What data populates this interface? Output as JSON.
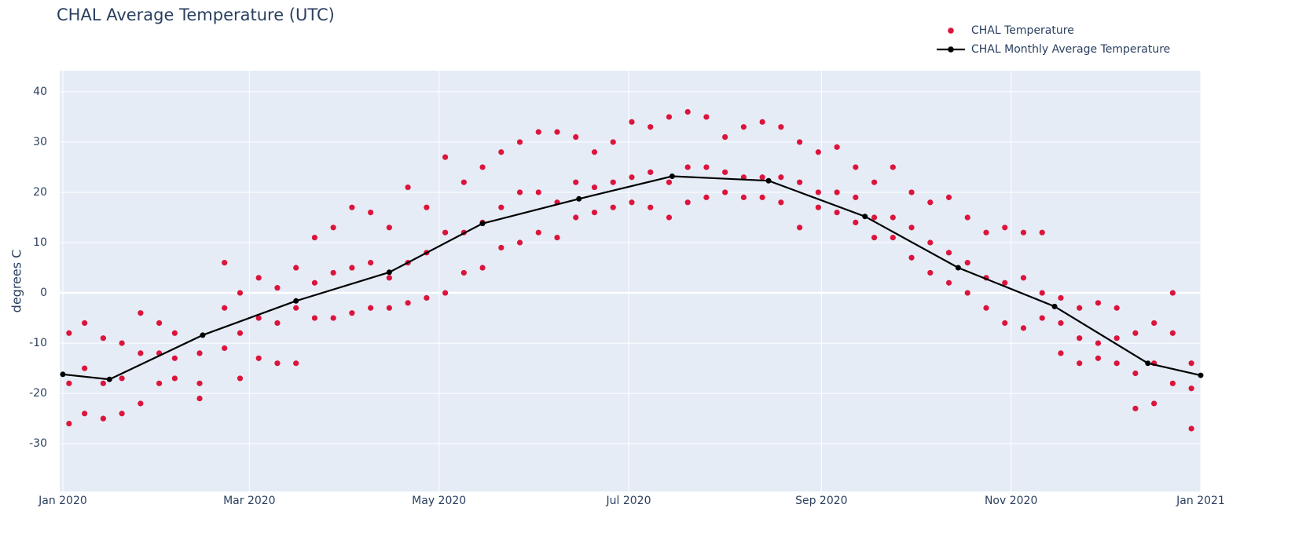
{
  "chart_data": {
    "type": "scatter",
    "title": "CHAL Average Temperature (UTC)",
    "y_label": "degrees C",
    "xlim": [
      "2019-12-31",
      "2021-01-01"
    ],
    "xticks": [
      {
        "value": "2020-01-01",
        "label": "Jan 2020"
      },
      {
        "value": "2020-03-01",
        "label": "Mar 2020"
      },
      {
        "value": "2020-05-01",
        "label": "May 2020"
      },
      {
        "value": "2020-07-01",
        "label": "Jul 2020"
      },
      {
        "value": "2020-09-01",
        "label": "Sep 2020"
      },
      {
        "value": "2020-11-01",
        "label": "Nov 2020"
      },
      {
        "value": "2021-01-01",
        "label": "Jan 2021"
      }
    ],
    "ylim": [
      -39.5,
      44.2
    ],
    "yticks": [
      -30,
      -20,
      -10,
      0,
      10,
      20,
      30,
      40
    ],
    "grid": true,
    "legend_position": "top-right",
    "series": [
      {
        "name": "CHAL Temperature",
        "color": "#dc143c",
        "mode": "markers",
        "x": [
          "2020-01-03",
          "2020-01-03",
          "2020-01-03",
          "2020-01-08",
          "2020-01-08",
          "2020-01-08",
          "2020-01-14",
          "2020-01-14",
          "2020-01-14",
          "2020-01-20",
          "2020-01-20",
          "2020-01-20",
          "2020-01-26",
          "2020-01-26",
          "2020-01-26",
          "2020-02-01",
          "2020-02-01",
          "2020-02-01",
          "2020-02-06",
          "2020-02-06",
          "2020-02-06",
          "2020-02-14",
          "2020-02-14",
          "2020-02-14",
          "2020-02-22",
          "2020-02-22",
          "2020-02-22",
          "2020-02-27",
          "2020-02-27",
          "2020-02-27",
          "2020-03-04",
          "2020-03-04",
          "2020-03-04",
          "2020-03-10",
          "2020-03-10",
          "2020-03-10",
          "2020-03-16",
          "2020-03-16",
          "2020-03-16",
          "2020-03-22",
          "2020-03-22",
          "2020-03-22",
          "2020-03-28",
          "2020-03-28",
          "2020-03-28",
          "2020-04-03",
          "2020-04-03",
          "2020-04-03",
          "2020-04-09",
          "2020-04-09",
          "2020-04-09",
          "2020-04-15",
          "2020-04-15",
          "2020-04-15",
          "2020-04-21",
          "2020-04-21",
          "2020-04-21",
          "2020-04-27",
          "2020-04-27",
          "2020-04-27",
          "2020-05-03",
          "2020-05-03",
          "2020-05-03",
          "2020-05-09",
          "2020-05-09",
          "2020-05-09",
          "2020-05-15",
          "2020-05-15",
          "2020-05-15",
          "2020-05-21",
          "2020-05-21",
          "2020-05-21",
          "2020-05-27",
          "2020-05-27",
          "2020-05-27",
          "2020-06-02",
          "2020-06-02",
          "2020-06-02",
          "2020-06-08",
          "2020-06-08",
          "2020-06-08",
          "2020-06-14",
          "2020-06-14",
          "2020-06-14",
          "2020-06-20",
          "2020-06-20",
          "2020-06-20",
          "2020-06-26",
          "2020-06-26",
          "2020-06-26",
          "2020-07-02",
          "2020-07-02",
          "2020-07-02",
          "2020-07-08",
          "2020-07-08",
          "2020-07-08",
          "2020-07-14",
          "2020-07-14",
          "2020-07-14",
          "2020-07-20",
          "2020-07-20",
          "2020-07-20",
          "2020-07-26",
          "2020-07-26",
          "2020-07-26",
          "2020-08-01",
          "2020-08-01",
          "2020-08-01",
          "2020-08-07",
          "2020-08-07",
          "2020-08-07",
          "2020-08-13",
          "2020-08-13",
          "2020-08-13",
          "2020-08-19",
          "2020-08-19",
          "2020-08-19",
          "2020-08-25",
          "2020-08-25",
          "2020-08-25",
          "2020-08-31",
          "2020-08-31",
          "2020-08-31",
          "2020-09-06",
          "2020-09-06",
          "2020-09-06",
          "2020-09-12",
          "2020-09-12",
          "2020-09-12",
          "2020-09-18",
          "2020-09-18",
          "2020-09-18",
          "2020-09-24",
          "2020-09-24",
          "2020-09-24",
          "2020-09-30",
          "2020-09-30",
          "2020-09-30",
          "2020-10-06",
          "2020-10-06",
          "2020-10-06",
          "2020-10-12",
          "2020-10-12",
          "2020-10-12",
          "2020-10-18",
          "2020-10-18",
          "2020-10-18",
          "2020-10-24",
          "2020-10-24",
          "2020-10-24",
          "2020-10-30",
          "2020-10-30",
          "2020-10-30",
          "2020-11-05",
          "2020-11-05",
          "2020-11-05",
          "2020-11-11",
          "2020-11-11",
          "2020-11-11",
          "2020-11-17",
          "2020-11-17",
          "2020-11-17",
          "2020-11-23",
          "2020-11-23",
          "2020-11-23",
          "2020-11-29",
          "2020-11-29",
          "2020-11-29",
          "2020-12-05",
          "2020-12-05",
          "2020-12-05",
          "2020-12-11",
          "2020-12-11",
          "2020-12-11",
          "2020-12-17",
          "2020-12-17",
          "2020-12-17",
          "2020-12-23",
          "2020-12-23",
          "2020-12-23",
          "2020-12-29",
          "2020-12-29",
          "2020-12-29"
        ],
        "values": [
          -26,
          -18,
          -8,
          -24,
          -15,
          -6,
          -25,
          -18,
          -9,
          -24,
          -17,
          -10,
          -22,
          -12,
          -4,
          -18,
          -12,
          -6,
          -17,
          -13,
          -8,
          -21,
          -18,
          -12,
          -11,
          -3,
          6,
          -17,
          -8,
          0,
          -13,
          -5,
          3,
          -14,
          -6,
          1,
          -14,
          -3,
          5,
          -5,
          2,
          11,
          -5,
          4,
          13,
          -4,
          5,
          17,
          -3,
          6,
          16,
          -3,
          3,
          13,
          -2,
          6,
          21,
          -1,
          8,
          17,
          0,
          12,
          27,
          4,
          12,
          22,
          5,
          14,
          25,
          9,
          17,
          28,
          10,
          20,
          30,
          12,
          20,
          32,
          11,
          18,
          32,
          15,
          22,
          31,
          16,
          21,
          28,
          17,
          22,
          30,
          18,
          23,
          34,
          17,
          24,
          33,
          15,
          22,
          35,
          18,
          25,
          36,
          19,
          25,
          35,
          20,
          24,
          31,
          19,
          23,
          33,
          19,
          23,
          34,
          18,
          23,
          33,
          13,
          22,
          30,
          17,
          20,
          28,
          16,
          20,
          29,
          14,
          19,
          25,
          11,
          15,
          22,
          11,
          15,
          25,
          7,
          13,
          20,
          4,
          10,
          18,
          2,
          8,
          19,
          0,
          6,
          15,
          -3,
          3,
          12,
          -6,
          2,
          13,
          -7,
          3,
          12,
          -5,
          0,
          12,
          -12,
          -6,
          -1,
          -14,
          -9,
          -3,
          -13,
          -10,
          -2,
          -14,
          -9,
          -3,
          -23,
          -16,
          -8,
          -22,
          -14,
          -6,
          -18,
          -8,
          0,
          -27,
          -19,
          -14
        ]
      },
      {
        "name": "CHAL Monthly Average Temperature",
        "color": "#000000",
        "mode": "lines+markers",
        "x": [
          "2020-01-01",
          "2020-01-16",
          "2020-02-15",
          "2020-03-16",
          "2020-04-15",
          "2020-05-15",
          "2020-06-15",
          "2020-07-15",
          "2020-08-15",
          "2020-09-15",
          "2020-10-15",
          "2020-11-15",
          "2020-12-15",
          "2021-01-01"
        ],
        "values": [
          -16.2,
          -17.2,
          -8.4,
          -1.6,
          4.1,
          13.8,
          18.7,
          23.2,
          22.3,
          15.2,
          5.0,
          -2.7,
          -14.0,
          -16.4
        ]
      }
    ]
  }
}
